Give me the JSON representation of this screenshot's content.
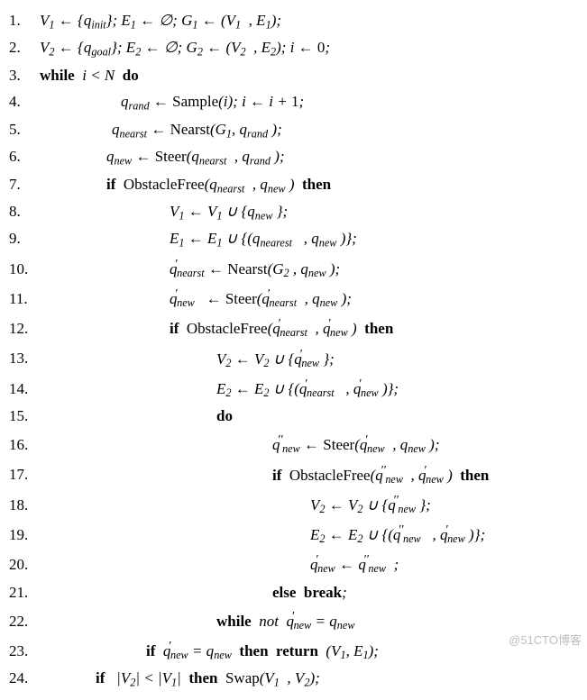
{
  "watermark": "@51CTO博客",
  "lines": [
    {
      "n": "1.",
      "indent": "",
      "html": "V<sub>1</sub> ← {q<sub>init</sub>}; E<sub>1</sub> ← ∅; G<sub>1</sub> ← (V<sub>1</sub>&nbsp;&nbsp;, E<sub>1</sub>);"
    },
    {
      "n": "2.",
      "indent": "",
      "html": "V<sub>2</sub> ← {q<sub>goal</sub>}; E<sub>2</sub> ← ∅; G<sub>2</sub> ← (V<sub>2</sub>&nbsp;&nbsp;, E<sub>2</sub>); i ← <span class='rm'>0</span>;"
    },
    {
      "n": "3.",
      "indent": "",
      "html": "<span class='kw'>while</span>&nbsp;&nbsp;i &lt; N&nbsp;&nbsp;<span class='kw'>do</span>"
    },
    {
      "n": "4.",
      "indent": "ind1",
      "html": "q<sub>rand</sub> ← <span class='rm'>Sample</span>(i); i ← i + <span class='rm'>1</span>;"
    },
    {
      "n": "5.",
      "indent": "ind1b",
      "html": "q<sub>nearst</sub> ← <span class='rm'>Nearst</span>(G<sub>1</sub>, q<sub>rand</sub>&nbsp;);"
    },
    {
      "n": "6.",
      "indent": "ind1c",
      "html": "q<sub>new</sub> ← <span class='rm'>Steer</span>(q<sub>nearst</sub>&nbsp;&nbsp;, q<sub>rand</sub>&nbsp;);"
    },
    {
      "n": "7.",
      "indent": "ind1c",
      "html": "<span class='kw'>if&nbsp;&nbsp;</span><span class='rm'>ObstacleFree</span>(q<sub>nearst</sub>&nbsp;&nbsp;, q<sub>new</sub>&nbsp;)&nbsp;&nbsp;<span class='kw'>then</span>"
    },
    {
      "n": "8.",
      "indent": "ind2",
      "html": "V<sub>1</sub> ← V<sub>1</sub> ∪ {q<sub>new</sub>&nbsp;};"
    },
    {
      "n": "9.",
      "indent": "ind2",
      "html": "E<sub>1</sub> ← E<sub>1</sub> ∪ {(q<sub>nearest</sub>&nbsp;&nbsp;&nbsp;, q<sub>new</sub>&nbsp;)};"
    },
    {
      "n": "10.",
      "indent": "ind2",
      "html": "q<sup class='pr'>′</sup><sub>nearst</sub> ← <span class='rm'>Nearst</span>(G<sub>2</sub>&nbsp;, q<sub>new</sub>&nbsp;);"
    },
    {
      "n": "11.",
      "indent": "ind2",
      "html": "q<sup class='pr'>′</sup><sub>new</sub>&nbsp;&nbsp; ← <span class='rm'>Steer</span>(q<sup class='pr'>′</sup><sub>nearst</sub>&nbsp;&nbsp;, q<sub>new</sub>&nbsp;);"
    },
    {
      "n": "12.",
      "indent": "ind2",
      "html": "<span class='kw'>if&nbsp;&nbsp;</span><span class='rm'>ObstacleFree</span>(q<sup class='pr'>′</sup><sub>nearst</sub>&nbsp;&nbsp;, q<sup class='pr'>′</sup><sub>new</sub>&nbsp;)&nbsp;&nbsp;<span class='kw'>then</span>"
    },
    {
      "n": "13.",
      "indent": "ind3",
      "html": "V<sub>2</sub> ← V<sub>2</sub> ∪ {q<sup class='pr'>′</sup><sub>new</sub>&nbsp;};"
    },
    {
      "n": "14.",
      "indent": "ind3",
      "html": "E<sub>2</sub> ← E<sub>2</sub> ∪ {(q<sup class='pr'>′</sup><sub>nearst</sub>&nbsp;&nbsp;&nbsp;, q<sup class='pr'>′</sup><sub>new</sub>&nbsp;)};"
    },
    {
      "n": "15.",
      "indent": "ind3",
      "html": "<span class='kw'>do</span>"
    },
    {
      "n": "16.",
      "indent": "ind4",
      "html": "q<sup class='pr'>′′</sup><sub>new</sub> ← <span class='rm'>Steer</span>(q<sup class='pr'>′</sup><sub>new</sub>&nbsp;&nbsp;, q<sub>new</sub>&nbsp;);"
    },
    {
      "n": "17.",
      "indent": "ind4",
      "html": "<span class='kw'>if&nbsp;&nbsp;</span><span class='rm'>ObstacleFree</span>(q<sup class='pr'>′′</sup><sub>new</sub>&nbsp;&nbsp;, q<sup class='pr'>′</sup><sub>new</sub>&nbsp;)&nbsp;&nbsp;<span class='kw'>then</span>"
    },
    {
      "n": "18.",
      "indent": "ind5",
      "html": "V<sub>2</sub> ← V<sub>2</sub> ∪ {q<sup class='pr'>′′</sup><sub>new</sub>&nbsp;};"
    },
    {
      "n": "19.",
      "indent": "ind5",
      "html": "E<sub>2</sub> ← E<sub>2</sub> ∪ {(q<sup class='pr'>′′</sup><sub>new</sub>&nbsp;&nbsp;&nbsp;, q<sup class='pr'>′</sup><sub>new</sub>&nbsp;)};"
    },
    {
      "n": "20.",
      "indent": "ind5",
      "html": "q<sup class='pr'>′</sup><sub>new</sub> ← q<sup class='pr'>′′</sup><sub>new</sub>&nbsp;&nbsp;;"
    },
    {
      "n": "21.",
      "indent": "ind4",
      "html": "<span class='kw'>else&nbsp;&nbsp;break</span>;"
    },
    {
      "n": "22.",
      "indent": "ind3",
      "html": "<span class='kw'>while</span>&nbsp;&nbsp;not&nbsp;&nbsp;q<sup class='pr'>′</sup><sub>new</sub> = q<sub>new</sub>"
    },
    {
      "n": "23.",
      "indent": "indif2",
      "html": "<span class='kw'>if</span>&nbsp;&nbsp;q<sup class='pr'>′</sup><sub>new</sub> = q<sub>new</sub>&nbsp;&nbsp;<span class='kw'>then&nbsp;&nbsp;return</span>&nbsp;&nbsp;(V<sub>1</sub>, E<sub>1</sub>);"
    },
    {
      "n": "24.",
      "indent": "indif4",
      "html": "<span class='kw'>if</span>&nbsp;&nbsp;&nbsp;|V<sub>2</sub>| &lt; |V<sub>1</sub>|&nbsp;&nbsp;<span class='kw'>then</span>&nbsp;&nbsp;<span class='rm'>Swap</span>(V<sub>1</sub>&nbsp;&nbsp;, V<sub>2</sub>);"
    }
  ]
}
